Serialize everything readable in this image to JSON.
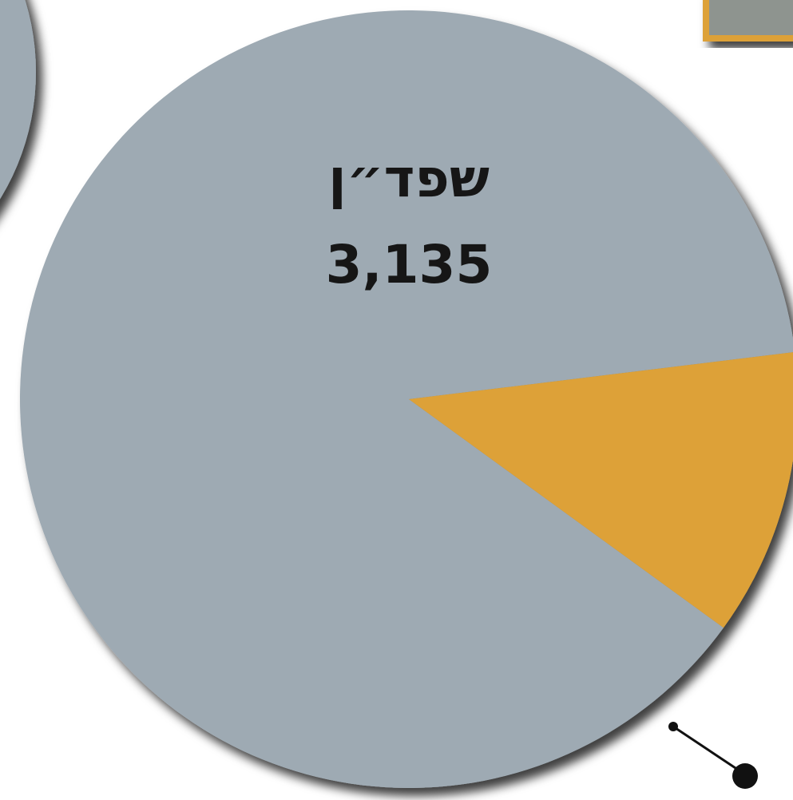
{
  "chart_data": {
    "type": "pie",
    "categories": [
      "שפד״ן",
      null
    ],
    "values": [
      3135,
      425
    ],
    "value_labels": [
      "3,135",
      null
    ],
    "colors": [
      "#9eaab3",
      "#dda137"
    ]
  }
}
